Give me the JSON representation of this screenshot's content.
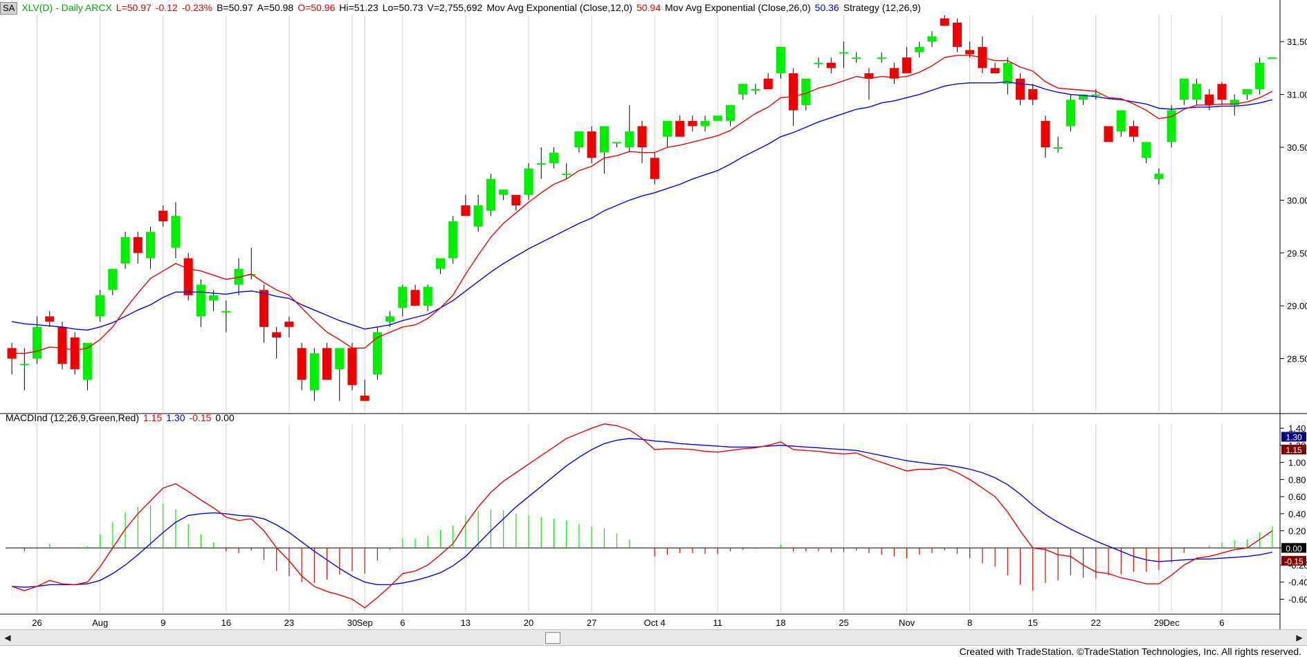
{
  "header": {
    "badge": "SA",
    "symbol": "XLV(D) - Daily  ARCX",
    "last": "L=50.97",
    "change": "-0.12",
    "change_pct": "-0.23%",
    "bid": "B=50.97",
    "ask": "A=50.98",
    "open": "O=50.96",
    "high": "Hi=51.23",
    "low": "Lo=50.73",
    "volume": "V=2,755,692",
    "ema12_label": "Mov Avg Exponential (Close,12,0)",
    "ema12_value": "50.94",
    "ema26_label": "Mov Avg Exponential (Close,26,0)",
    "ema26_value": "50.36",
    "strategy_label": "Strategy (12,26,9)"
  },
  "macd_header": {
    "label": "MACDInd (12,26,9,Green,Red)",
    "macd_value": "1.15",
    "signal_value": "1.30",
    "hist_value": "-0.15",
    "zero_value": "0.00"
  },
  "colors": {
    "up": "#00ee00",
    "down": "#ee0000",
    "ema12": "#ee0000",
    "ema26": "#0000ee",
    "trade_line": "#00cccc",
    "signal_box": "#000080",
    "macd_box": "#800000",
    "zero_box": "#000000"
  },
  "footer": "Created with TradeStation. ©TradeStation Technologies, Inc. All rights reserved.",
  "scrollbar": {
    "left_arrow": "◀",
    "right_arrow": "▶"
  },
  "chart_data": {
    "type": "candlestick",
    "x_ticks": [
      {
        "label": "26",
        "i": 2
      },
      {
        "label": "Aug",
        "i": 7
      },
      {
        "label": "9",
        "i": 12
      },
      {
        "label": "16",
        "i": 17
      },
      {
        "label": "23",
        "i": 22
      },
      {
        "label": "30",
        "i": 27
      },
      {
        "label": "Sep",
        "i": 28
      },
      {
        "label": "6",
        "i": 31
      },
      {
        "label": "13",
        "i": 36
      },
      {
        "label": "20",
        "i": 41
      },
      {
        "label": "27",
        "i": 46
      },
      {
        "label": "Oct 4",
        "i": 51
      },
      {
        "label": "11",
        "i": 56
      },
      {
        "label": "18",
        "i": 61
      },
      {
        "label": "25",
        "i": 66
      },
      {
        "label": "Nov",
        "i": 71
      },
      {
        "label": "8",
        "i": 76
      },
      {
        "label": "15",
        "i": 81
      },
      {
        "label": "22",
        "i": 86
      },
      {
        "label": "29",
        "i": 91
      },
      {
        "label": "Dec",
        "i": 92
      },
      {
        "label": "6",
        "i": 96
      }
    ],
    "price_axis": {
      "min": 28.0,
      "max": 31.75,
      "ticks": [
        "28.50",
        "29.00",
        "29.50",
        "30.00",
        "30.50",
        "31.00",
        "31.50"
      ]
    },
    "candles": [
      [
        28.6,
        28.65,
        28.35,
        28.5
      ],
      [
        28.45,
        28.6,
        28.2,
        28.45
      ],
      [
        28.5,
        28.9,
        28.45,
        28.8
      ],
      [
        28.9,
        28.95,
        28.8,
        28.85
      ],
      [
        28.8,
        28.85,
        28.4,
        28.45
      ],
      [
        28.7,
        28.75,
        28.35,
        28.4
      ],
      [
        28.3,
        28.65,
        28.2,
        28.65
      ],
      [
        28.9,
        29.15,
        28.85,
        29.1
      ],
      [
        29.15,
        29.35,
        29.1,
        29.35
      ],
      [
        29.4,
        29.7,
        29.35,
        29.65
      ],
      [
        29.65,
        29.7,
        29.4,
        29.5
      ],
      [
        29.45,
        29.75,
        29.35,
        29.7
      ],
      [
        29.9,
        29.95,
        29.75,
        29.8
      ],
      [
        29.55,
        29.98,
        29.45,
        29.85
      ],
      [
        29.45,
        29.5,
        29.05,
        29.1
      ],
      [
        28.9,
        29.25,
        28.8,
        29.2
      ],
      [
        29.05,
        29.15,
        28.95,
        29.1
      ],
      [
        28.95,
        29.05,
        28.75,
        28.95
      ],
      [
        29.2,
        29.45,
        29.1,
        29.35
      ],
      [
        29.3,
        29.55,
        29.25,
        29.3
      ],
      [
        29.15,
        29.2,
        28.65,
        28.8
      ],
      [
        28.75,
        28.8,
        28.5,
        28.7
      ],
      [
        28.85,
        28.9,
        28.7,
        28.8
      ],
      [
        28.6,
        28.65,
        28.2,
        28.3
      ],
      [
        28.2,
        28.6,
        28.1,
        28.55
      ],
      [
        28.6,
        28.65,
        28.3,
        28.3
      ],
      [
        28.4,
        28.6,
        28.1,
        28.6
      ],
      [
        28.6,
        28.65,
        28.2,
        28.25
      ],
      [
        28.15,
        28.3,
        28.1,
        28.1
      ],
      [
        28.35,
        28.8,
        28.3,
        28.75
      ],
      [
        28.85,
        28.95,
        28.8,
        28.9
      ],
      [
        28.98,
        29.2,
        28.9,
        29.18
      ],
      [
        29.15,
        29.2,
        29.0,
        29.0
      ],
      [
        29.0,
        29.2,
        28.95,
        29.18
      ],
      [
        29.35,
        29.45,
        29.3,
        29.45
      ],
      [
        29.45,
        29.85,
        29.4,
        29.8
      ],
      [
        29.95,
        30.05,
        29.85,
        29.85
      ],
      [
        29.75,
        30.05,
        29.7,
        29.95
      ],
      [
        29.9,
        30.25,
        29.85,
        30.2
      ],
      [
        30.05,
        30.1,
        30.0,
        30.1
      ],
      [
        30.05,
        30.05,
        29.9,
        29.95
      ],
      [
        30.05,
        30.35,
        30.0,
        30.3
      ],
      [
        30.35,
        30.5,
        30.2,
        30.35
      ],
      [
        30.35,
        30.5,
        30.3,
        30.45
      ],
      [
        30.25,
        30.35,
        30.2,
        30.25
      ],
      [
        30.5,
        30.65,
        30.45,
        30.65
      ],
      [
        30.65,
        30.7,
        30.35,
        30.4
      ],
      [
        30.45,
        30.7,
        30.25,
        30.7
      ],
      [
        30.55,
        30.55,
        30.5,
        30.55
      ],
      [
        30.5,
        30.9,
        30.45,
        30.65
      ],
      [
        30.7,
        30.75,
        30.35,
        30.5
      ],
      [
        30.4,
        30.45,
        30.15,
        30.2
      ],
      [
        30.6,
        30.75,
        30.5,
        30.75
      ],
      [
        30.75,
        30.8,
        30.6,
        30.6
      ],
      [
        30.75,
        30.8,
        30.65,
        30.7
      ],
      [
        30.7,
        30.8,
        30.65,
        30.75
      ],
      [
        30.75,
        30.8,
        30.75,
        30.8
      ],
      [
        30.75,
        30.9,
        30.7,
        30.9
      ],
      [
        31.0,
        31.1,
        30.95,
        31.1
      ],
      [
        31.05,
        31.1,
        31.0,
        31.05
      ],
      [
        31.15,
        31.2,
        31.05,
        31.05
      ],
      [
        31.2,
        31.45,
        31.15,
        31.45
      ],
      [
        31.2,
        31.25,
        30.7,
        30.85
      ],
      [
        30.9,
        31.15,
        30.85,
        31.15
      ],
      [
        31.3,
        31.35,
        31.25,
        31.3
      ],
      [
        31.3,
        31.35,
        31.2,
        31.25
      ],
      [
        31.4,
        31.5,
        31.25,
        31.4
      ],
      [
        31.35,
        31.4,
        31.3,
        31.35
      ],
      [
        31.2,
        31.25,
        30.95,
        31.15
      ],
      [
        31.35,
        31.4,
        31.3,
        31.35
      ],
      [
        31.25,
        31.3,
        31.1,
        31.15
      ],
      [
        31.35,
        31.45,
        31.2,
        31.2
      ],
      [
        31.4,
        31.5,
        31.35,
        31.45
      ],
      [
        31.5,
        31.6,
        31.45,
        31.55
      ],
      [
        31.72,
        31.75,
        31.65,
        31.65
      ],
      [
        31.68,
        31.72,
        31.4,
        31.45
      ],
      [
        31.42,
        31.5,
        31.35,
        31.38
      ],
      [
        31.45,
        31.55,
        31.2,
        31.25
      ],
      [
        31.25,
        31.3,
        31.2,
        31.2
      ],
      [
        31.1,
        31.35,
        31.0,
        31.3
      ],
      [
        31.15,
        31.2,
        30.9,
        30.95
      ],
      [
        31.05,
        31.1,
        30.9,
        30.95
      ],
      [
        30.75,
        30.8,
        30.4,
        30.5
      ],
      [
        30.5,
        30.6,
        30.45,
        30.5
      ],
      [
        30.7,
        31.0,
        30.65,
        30.95
      ],
      [
        30.95,
        31.0,
        30.9,
        31.0
      ],
      [
        31.0,
        31.05,
        30.95,
        31.0
      ],
      [
        30.7,
        30.7,
        30.55,
        30.55
      ],
      [
        30.65,
        30.85,
        30.6,
        30.85
      ],
      [
        30.7,
        30.75,
        30.55,
        30.6
      ],
      [
        30.4,
        30.55,
        30.35,
        30.55
      ],
      [
        30.2,
        30.3,
        30.15,
        30.25
      ],
      [
        30.55,
        30.9,
        30.5,
        30.85
      ],
      [
        30.95,
        31.15,
        30.9,
        31.15
      ],
      [
        30.95,
        31.15,
        30.9,
        31.1
      ],
      [
        31.0,
        31.05,
        30.85,
        30.9
      ],
      [
        31.1,
        31.12,
        30.9,
        30.95
      ],
      [
        30.9,
        31.0,
        30.8,
        30.95
      ],
      [
        31.0,
        31.05,
        30.95,
        31.05
      ],
      [
        31.05,
        31.35,
        31.0,
        31.3
      ],
      [
        31.35,
        31.35,
        31.35,
        31.35
      ]
    ],
    "ema12": [
      28.55,
      28.55,
      28.57,
      28.61,
      28.6,
      28.58,
      28.6,
      28.68,
      28.8,
      28.97,
      29.12,
      29.26,
      29.33,
      29.4,
      29.35,
      29.33,
      29.29,
      29.25,
      29.27,
      29.3,
      29.22,
      29.15,
      29.1,
      28.98,
      28.86,
      28.75,
      28.68,
      28.6,
      28.6,
      28.7,
      28.75,
      28.8,
      28.82,
      28.88,
      28.98,
      29.1,
      29.3,
      29.48,
      29.65,
      29.78,
      29.88,
      29.98,
      30.07,
      30.15,
      30.2,
      30.28,
      30.32,
      30.4,
      30.42,
      30.46,
      30.45,
      30.45,
      30.5,
      30.52,
      30.55,
      30.58,
      30.61,
      30.66,
      30.74,
      30.82,
      30.88,
      30.97,
      30.98,
      31.01,
      31.06,
      31.09,
      31.13,
      31.17,
      31.15,
      31.17,
      31.16,
      31.17,
      31.21,
      31.27,
      31.35,
      31.37,
      31.37,
      31.35,
      31.32,
      31.32,
      31.26,
      31.22,
      31.12,
      31.06,
      31.05,
      31.04,
      31.03,
      30.97,
      30.96,
      30.91,
      30.85,
      30.77,
      30.79,
      30.86,
      30.9,
      30.9,
      30.91,
      30.91,
      30.93,
      30.97,
      31.03
    ],
    "ema26": [
      28.85,
      28.83,
      28.82,
      28.81,
      28.8,
      28.78,
      28.77,
      28.8,
      28.84,
      28.9,
      28.96,
      29.01,
      29.08,
      29.13,
      29.13,
      29.13,
      29.12,
      29.11,
      29.13,
      29.14,
      29.12,
      29.09,
      29.07,
      29.01,
      28.96,
      28.91,
      28.86,
      28.82,
      28.78,
      28.8,
      28.82,
      28.86,
      28.89,
      28.92,
      28.98,
      29.05,
      29.14,
      29.23,
      29.32,
      29.4,
      29.47,
      29.54,
      29.6,
      29.66,
      29.72,
      29.78,
      29.83,
      29.9,
      29.95,
      30.0,
      30.04,
      30.07,
      30.11,
      30.15,
      30.2,
      30.24,
      30.28,
      30.34,
      30.41,
      30.47,
      30.53,
      30.6,
      30.64,
      30.69,
      30.74,
      30.78,
      30.82,
      30.86,
      30.88,
      30.92,
      30.94,
      30.97,
      31.0,
      31.04,
      31.08,
      31.1,
      31.11,
      31.11,
      31.11,
      31.12,
      31.1,
      31.09,
      31.05,
      31.02,
      31.0,
      30.99,
      30.98,
      30.96,
      30.95,
      30.93,
      30.91,
      30.87,
      30.86,
      30.87,
      30.88,
      30.88,
      30.89,
      30.89,
      30.9,
      30.92,
      30.95
    ],
    "macd_axis": {
      "min": -0.75,
      "max": 1.45,
      "ticks": [
        "1.40",
        "1.20",
        "1.00",
        "0.80",
        "0.60",
        "0.40",
        "0.20",
        "0.00",
        "-0.20",
        "-0.40",
        "-0.60"
      ]
    },
    "macd": [
      -0.45,
      -0.5,
      -0.45,
      -0.38,
      -0.42,
      -0.43,
      -0.4,
      -0.22,
      0.0,
      0.22,
      0.4,
      0.55,
      0.7,
      0.75,
      0.66,
      0.56,
      0.47,
      0.36,
      0.32,
      0.34,
      0.2,
      0.0,
      -0.15,
      -0.33,
      -0.45,
      -0.51,
      -0.55,
      -0.6,
      -0.7,
      -0.58,
      -0.45,
      -0.3,
      -0.27,
      -0.2,
      -0.08,
      0.05,
      0.28,
      0.48,
      0.65,
      0.78,
      0.88,
      0.98,
      1.08,
      1.18,
      1.28,
      1.34,
      1.4,
      1.45,
      1.43,
      1.38,
      1.28,
      1.15,
      1.16,
      1.16,
      1.15,
      1.13,
      1.12,
      1.14,
      1.16,
      1.17,
      1.2,
      1.24,
      1.15,
      1.14,
      1.13,
      1.11,
      1.1,
      1.11,
      1.05,
      1.0,
      0.95,
      0.9,
      0.92,
      0.92,
      0.94,
      0.88,
      0.8,
      0.7,
      0.6,
      0.42,
      0.2,
      0.0,
      -0.02,
      -0.08,
      -0.1,
      -0.2,
      -0.28,
      -0.3,
      -0.35,
      -0.38,
      -0.42,
      -0.42,
      -0.32,
      -0.2,
      -0.12,
      -0.1,
      -0.06,
      -0.02,
      0.0,
      0.1,
      0.2
    ],
    "signal": [
      -0.45,
      -0.46,
      -0.45,
      -0.43,
      -0.43,
      -0.43,
      -0.42,
      -0.38,
      -0.3,
      -0.2,
      -0.08,
      0.05,
      0.18,
      0.3,
      0.38,
      0.4,
      0.41,
      0.4,
      0.38,
      0.37,
      0.34,
      0.27,
      0.18,
      0.07,
      -0.04,
      -0.14,
      -0.24,
      -0.33,
      -0.4,
      -0.43,
      -0.43,
      -0.41,
      -0.38,
      -0.34,
      -0.29,
      -0.21,
      -0.1,
      0.05,
      0.2,
      0.34,
      0.48,
      0.6,
      0.72,
      0.84,
      0.96,
      1.06,
      1.15,
      1.22,
      1.26,
      1.28,
      1.27,
      1.25,
      1.24,
      1.22,
      1.21,
      1.2,
      1.19,
      1.18,
      1.18,
      1.18,
      1.19,
      1.2,
      1.19,
      1.18,
      1.17,
      1.16,
      1.15,
      1.14,
      1.11,
      1.08,
      1.05,
      1.02,
      1.0,
      0.98,
      0.97,
      0.95,
      0.92,
      0.88,
      0.82,
      0.74,
      0.63,
      0.5,
      0.39,
      0.3,
      0.22,
      0.15,
      0.08,
      0.02,
      -0.04,
      -0.1,
      -0.14,
      -0.16,
      -0.15,
      -0.14,
      -0.13,
      -0.13,
      -0.12,
      -0.11,
      -0.1,
      -0.08,
      -0.05
    ]
  }
}
